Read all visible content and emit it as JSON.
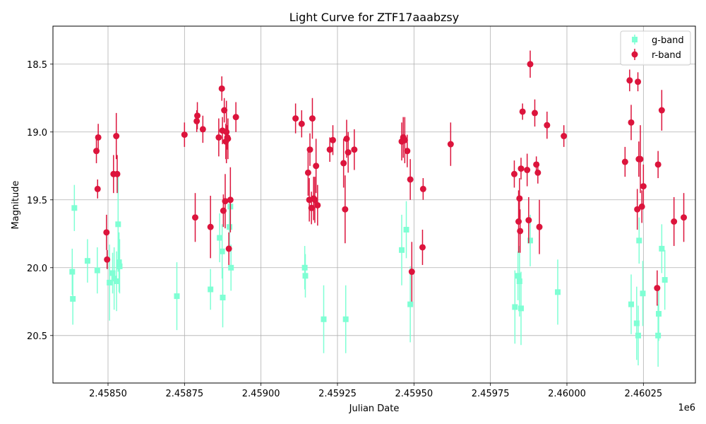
{
  "chart_data": {
    "type": "scatter",
    "title": "Light Curve for ZTF17aaabzsy",
    "xlabel": "Julian Date",
    "ylabel": "Magnitude",
    "x_offset_label": "1e6",
    "xlim": [
      2458320,
      2460420
    ],
    "ylim": [
      20.85,
      18.22
    ],
    "y_inverted": true,
    "grid": true,
    "legend_position": "upper-right",
    "x_ticks": [
      {
        "value": 2458500,
        "label": "2.45850"
      },
      {
        "value": 2458750,
        "label": "2.45875"
      },
      {
        "value": 2459000,
        "label": "2.45900"
      },
      {
        "value": 2459250,
        "label": "2.45925"
      },
      {
        "value": 2459500,
        "label": "2.45950"
      },
      {
        "value": 2459750,
        "label": "2.45975"
      },
      {
        "value": 2460000,
        "label": "2.46000"
      },
      {
        "value": 2460250,
        "label": "2.46025"
      }
    ],
    "y_ticks": [
      {
        "value": 18.5,
        "label": "18.5"
      },
      {
        "value": 19.0,
        "label": "19.0"
      },
      {
        "value": 19.5,
        "label": "19.5"
      },
      {
        "value": 20.0,
        "label": "20.0"
      },
      {
        "value": 20.5,
        "label": "20.5"
      }
    ],
    "series": [
      {
        "name": "g-band",
        "color": "#7fffd4",
        "marker": "square",
        "points": [
          [
            2458383,
            20.03,
            0.17
          ],
          [
            2458385,
            20.23,
            0.19
          ],
          [
            2458390,
            19.56,
            0.17
          ],
          [
            2458433,
            19.95,
            0.16
          ],
          [
            2458465,
            20.02,
            0.17
          ],
          [
            2458505,
            20.11,
            0.28
          ],
          [
            2458515,
            20.04,
            0.15
          ],
          [
            2458520,
            20.08,
            0.23
          ],
          [
            2458528,
            20.1,
            0.22
          ],
          [
            2458533,
            19.68,
            0.35
          ],
          [
            2458536,
            19.96,
            0.22
          ],
          [
            2458538,
            19.99,
            0.2
          ],
          [
            2458725,
            20.21,
            0.25
          ],
          [
            2458835,
            20.16,
            0.15
          ],
          [
            2458865,
            19.78,
            0.18
          ],
          [
            2458873,
            19.88,
            0.2
          ],
          [
            2458875,
            20.22,
            0.22
          ],
          [
            2458897,
            19.7,
            0.18
          ],
          [
            2458900,
            19.55,
            0.15
          ],
          [
            2458902,
            20.0,
            0.17
          ],
          [
            2459143,
            20.0,
            0.16
          ],
          [
            2459145,
            20.06,
            0.16
          ],
          [
            2459205,
            20.38,
            0.25
          ],
          [
            2459277,
            20.38,
            0.25
          ],
          [
            2459460,
            19.87,
            0.26
          ],
          [
            2459475,
            19.72,
            0.21
          ],
          [
            2459488,
            20.27,
            0.28
          ],
          [
            2459830,
            20.29,
            0.27
          ],
          [
            2459840,
            20.06,
            0.18
          ],
          [
            2459845,
            20.1,
            0.26
          ],
          [
            2459850,
            20.3,
            0.27
          ],
          [
            2459880,
            19.8,
            0.19
          ],
          [
            2459970,
            20.18,
            0.24
          ],
          [
            2460210,
            20.27,
            0.22
          ],
          [
            2460228,
            20.41,
            0.27
          ],
          [
            2460233,
            20.5,
            0.22
          ],
          [
            2460236,
            19.8,
            0.17
          ],
          [
            2460248,
            20.19,
            0.24
          ],
          [
            2460298,
            20.5,
            0.23
          ],
          [
            2460300,
            20.34,
            0.2
          ],
          [
            2460310,
            19.86,
            0.18
          ],
          [
            2460320,
            20.09,
            0.22
          ]
        ]
      },
      {
        "name": "r-band",
        "color": "#dc143c",
        "marker": "circle",
        "points": [
          [
            2458462,
            19.14,
            0.09
          ],
          [
            2458466,
            19.42,
            0.07
          ],
          [
            2458468,
            19.04,
            0.1
          ],
          [
            2458495,
            19.74,
            0.13
          ],
          [
            2458497,
            19.94,
            0.07
          ],
          [
            2458518,
            19.31,
            0.14
          ],
          [
            2458527,
            19.03,
            0.17
          ],
          [
            2458530,
            19.31,
            0.14
          ],
          [
            2458750,
            19.02,
            0.09
          ],
          [
            2458785,
            19.63,
            0.18
          ],
          [
            2458790,
            18.92,
            0.08
          ],
          [
            2458792,
            18.88,
            0.1
          ],
          [
            2458810,
            18.98,
            0.1
          ],
          [
            2458835,
            19.7,
            0.23
          ],
          [
            2458862,
            19.04,
            0.14
          ],
          [
            2458872,
            18.68,
            0.09
          ],
          [
            2458874,
            18.99,
            0.1
          ],
          [
            2458877,
            19.58,
            0.12
          ],
          [
            2458880,
            18.84,
            0.09
          ],
          [
            2458883,
            19.51,
            0.2
          ],
          [
            2458885,
            19.07,
            0.13
          ],
          [
            2458887,
            19.0,
            0.23
          ],
          [
            2458890,
            19.04,
            0.09
          ],
          [
            2458892,
            19.05,
            0.15
          ],
          [
            2458895,
            19.86,
            0.12
          ],
          [
            2458900,
            19.5,
            0.24
          ],
          [
            2458918,
            18.89,
            0.11
          ],
          [
            2459113,
            18.9,
            0.11
          ],
          [
            2459133,
            18.94,
            0.1
          ],
          [
            2459154,
            19.3,
            0.17
          ],
          [
            2459158,
            19.5,
            0.16
          ],
          [
            2459160,
            19.13,
            0.12
          ],
          [
            2459165,
            19.56,
            0.12
          ],
          [
            2459168,
            18.9,
            0.15
          ],
          [
            2459172,
            19.49,
            0.16
          ],
          [
            2459176,
            19.5,
            0.17
          ],
          [
            2459180,
            19.25,
            0.2
          ],
          [
            2459185,
            19.54,
            0.15
          ],
          [
            2459225,
            19.13,
            0.09
          ],
          [
            2459235,
            19.06,
            0.11
          ],
          [
            2459270,
            19.23,
            0.18
          ],
          [
            2459275,
            19.57,
            0.25
          ],
          [
            2459280,
            19.05,
            0.14
          ],
          [
            2459285,
            19.15,
            0.15
          ],
          [
            2459305,
            19.13,
            0.15
          ],
          [
            2459460,
            19.07,
            0.14
          ],
          [
            2459465,
            19.04,
            0.15
          ],
          [
            2459470,
            19.06,
            0.17
          ],
          [
            2459478,
            19.14,
            0.12
          ],
          [
            2459488,
            19.35,
            0.15
          ],
          [
            2459493,
            20.03,
            0.22
          ],
          [
            2459528,
            19.85,
            0.13
          ],
          [
            2459530,
            19.42,
            0.08
          ],
          [
            2459620,
            19.09,
            0.16
          ],
          [
            2459828,
            19.31,
            0.1
          ],
          [
            2459842,
            19.66,
            0.23
          ],
          [
            2459845,
            19.49,
            0.15
          ],
          [
            2459847,
            19.73,
            0.16
          ],
          [
            2459850,
            19.27,
            0.08
          ],
          [
            2459855,
            18.85,
            0.06
          ],
          [
            2459870,
            19.28,
            0.12
          ],
          [
            2459875,
            19.65,
            0.17
          ],
          [
            2459880,
            18.5,
            0.1
          ],
          [
            2459895,
            18.86,
            0.1
          ],
          [
            2459900,
            19.24,
            0.06
          ],
          [
            2459905,
            19.3,
            0.08
          ],
          [
            2459910,
            19.7,
            0.2
          ],
          [
            2459935,
            18.95,
            0.1
          ],
          [
            2459990,
            19.03,
            0.08
          ],
          [
            2460190,
            19.22,
            0.11
          ],
          [
            2460205,
            18.62,
            0.08
          ],
          [
            2460210,
            18.93,
            0.13
          ],
          [
            2460230,
            19.57,
            0.15
          ],
          [
            2460232,
            18.63,
            0.07
          ],
          [
            2460235,
            19.2,
            0.13
          ],
          [
            2460240,
            19.2,
            0.25
          ],
          [
            2460245,
            19.55,
            0.12
          ],
          [
            2460250,
            19.4,
            0.16
          ],
          [
            2460295,
            20.15,
            0.13
          ],
          [
            2460298,
            19.24,
            0.1
          ],
          [
            2460310,
            18.84,
            0.15
          ],
          [
            2460350,
            19.66,
            0.18
          ],
          [
            2460382,
            19.63,
            0.18
          ]
        ]
      }
    ]
  }
}
